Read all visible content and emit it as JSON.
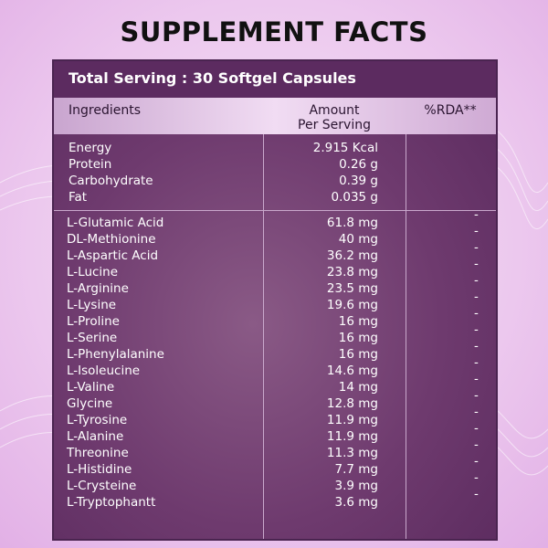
{
  "header": {
    "title": "SUPPLEMENT FACTS"
  },
  "table": {
    "serving": "Total Serving : 30 Softgel Capsules",
    "columns": [
      "Ingredients",
      "Amount\nPer Serving",
      "%RDA**"
    ],
    "sections": [
      {
        "rows": [
          [
            "Energy",
            "2.915 Kcal"
          ],
          [
            "Protein",
            "0.26 g"
          ],
          [
            "Carbohydrate",
            "0.39 g"
          ],
          [
            "Fat",
            "0.035 g"
          ]
        ]
      },
      {
        "rows": [
          [
            "L-Glutamic Acid",
            "61.8 mg",
            "-"
          ],
          [
            "DL-Methionine",
            "40 mg",
            "-"
          ],
          [
            "L-Aspartic Acid",
            "36.2 mg",
            "-"
          ],
          [
            "L-Lucine",
            "23.8 mg",
            "-"
          ],
          [
            "L-Arginine",
            "23.5 mg",
            "-"
          ],
          [
            "L-Lysine",
            "19.6 mg",
            "-"
          ],
          [
            "L-Proline",
            "16 mg",
            "-"
          ],
          [
            "L-Serine",
            "16 mg",
            "-"
          ],
          [
            "L-Phenylalanine",
            "16 mg",
            "-"
          ],
          [
            "L-Isoleucine",
            "14.6 mg",
            "-"
          ],
          [
            "L-Valine",
            "14 mg",
            "-"
          ],
          [
            "Glycine",
            "12.8 mg",
            "-"
          ],
          [
            "L-Tyrosine",
            "11.9 mg",
            "-"
          ],
          [
            "L-Alanine",
            "11.9 mg",
            "-"
          ],
          [
            "Threonine",
            "11.3 mg",
            "-"
          ],
          [
            "L-Histidine",
            "7.7 mg",
            "-"
          ],
          [
            "L-Crysteine",
            "3.9 mg",
            "-"
          ],
          [
            "L-Tryptophantt",
            "3.6 mg",
            "-"
          ]
        ]
      }
    ]
  }
}
